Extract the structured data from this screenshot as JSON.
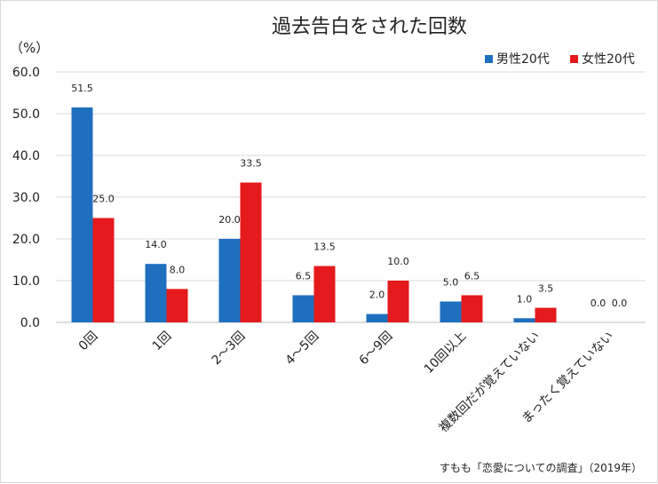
{
  "chart_data": {
    "type": "bar",
    "title": "過去告白をされた回数",
    "ylabel": "（%）",
    "ylim": [
      0,
      60
    ],
    "yticks": [
      "0.0",
      "10.0",
      "20.0",
      "30.0",
      "40.0",
      "50.0",
      "60.0"
    ],
    "grid": true,
    "legend_position": "top-right",
    "categories": [
      "0回",
      "1回",
      "2～3回",
      "4～5回",
      "6～9回",
      "10回以上",
      "複数回だが覚えていない",
      "まったく覚えていない"
    ],
    "series": [
      {
        "name": "男性20代",
        "color": "#1f6fbf",
        "values": [
          51.5,
          14.0,
          20.0,
          6.5,
          2.0,
          5.0,
          1.0,
          0.0
        ],
        "labels": [
          "51.5",
          "14.0",
          "20.0",
          "6.5",
          "2.0",
          "5.0",
          "1.0",
          "0.0"
        ]
      },
      {
        "name": "女性20代",
        "color": "#e41a1c",
        "values": [
          25.0,
          8.0,
          33.5,
          13.5,
          10.0,
          6.5,
          3.5,
          0.0
        ],
        "labels": [
          "25.0",
          "8.0",
          "33.5",
          "13.5",
          "10.0",
          "6.5",
          "3.5",
          "0.0"
        ]
      }
    ],
    "source": "すもも「恋愛についての調査」（2019年）"
  }
}
